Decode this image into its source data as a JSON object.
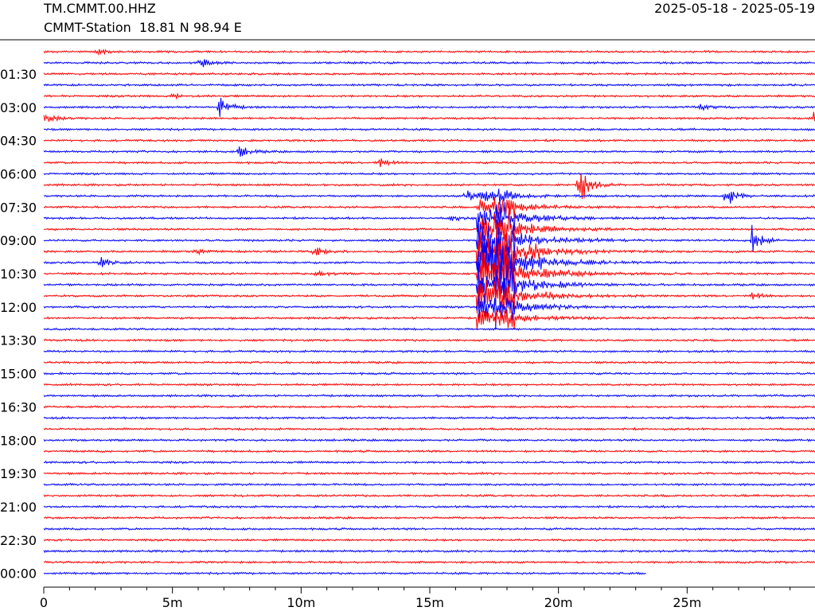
{
  "header": {
    "station_code": "TM.CMMT.00.HHZ",
    "station_info": "CMMT-Station  18.81 N 98.94 E",
    "date_range": "2025-05-18 - 2025-05-19"
  },
  "colors": {
    "odd_trace": "#ff0000",
    "even_trace": "#0000ff",
    "axis": "#000000"
  },
  "chart_data": {
    "type": "line",
    "title": "",
    "xlabel": "",
    "ylabel": "",
    "x_unit": "minutes",
    "xlim": [
      0,
      30
    ],
    "x_ticks": [
      {
        "value": 0,
        "label": "0"
      },
      {
        "value": 5,
        "label": "5m"
      },
      {
        "value": 10,
        "label": "10m"
      },
      {
        "value": 15,
        "label": "15m"
      },
      {
        "value": 20,
        "label": "20m"
      },
      {
        "value": 25,
        "label": "25m"
      }
    ],
    "y_tick_labels": [
      "01:30",
      "03:00",
      "04:30",
      "06:00",
      "07:30",
      "09:00",
      "10:30",
      "12:00",
      "13:30",
      "15:00",
      "16:30",
      "18:00",
      "19:30",
      "21:00",
      "22:30",
      "00:00"
    ],
    "trace_count": 48,
    "last_trace_end_minute": 23.4,
    "events": [
      {
        "trace": 0,
        "minute": 2.1,
        "amp": 3
      },
      {
        "trace": 1,
        "minute": 6.1,
        "amp": 6
      },
      {
        "trace": 4,
        "minute": 5.0,
        "amp": 4
      },
      {
        "trace": 5,
        "minute": 6.8,
        "amp": 14
      },
      {
        "trace": 5,
        "minute": 25.5,
        "amp": 4
      },
      {
        "trace": 6,
        "minute": 0.0,
        "amp": 8
      },
      {
        "trace": 6,
        "minute": 29.9,
        "amp": 14
      },
      {
        "trace": 9,
        "minute": 7.6,
        "amp": 7
      },
      {
        "trace": 10,
        "minute": 12.9,
        "amp": 9
      },
      {
        "trace": 12,
        "minute": 20.8,
        "amp": 30
      },
      {
        "trace": 13,
        "minute": 16.4,
        "amp": 8
      },
      {
        "trace": 13,
        "minute": 26.5,
        "amp": 17
      },
      {
        "trace": 15,
        "minute": 15.8,
        "amp": 4
      },
      {
        "trace": 17,
        "minute": 27.5,
        "amp": 20
      },
      {
        "trace": 18,
        "minute": 10.5,
        "amp": 8
      },
      {
        "trace": 18,
        "minute": 5.9,
        "amp": 4
      },
      {
        "trace": 19,
        "minute": 2.2,
        "amp": 7
      },
      {
        "trace": 20,
        "minute": 10.6,
        "amp": 5
      },
      {
        "trace": 22,
        "minute": 27.5,
        "amp": 5
      }
    ],
    "main_event": {
      "start_trace": 13,
      "end_trace": 24,
      "onset_minute": 16.8,
      "peak_minute": 17.8
    }
  }
}
